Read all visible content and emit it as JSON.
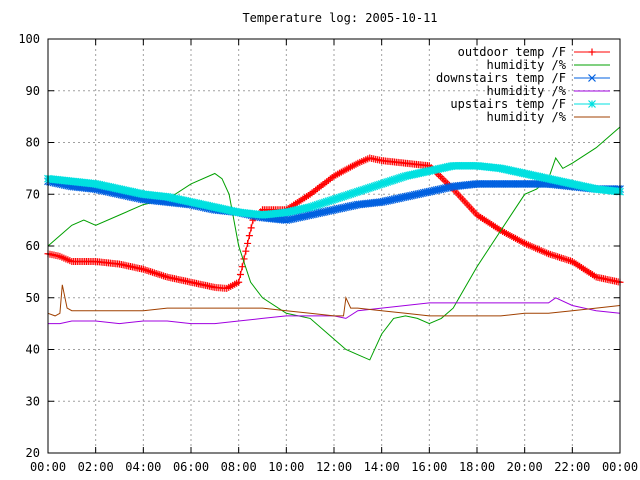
{
  "chart_data": {
    "type": "line",
    "title": "Temperature log: 2005-10-11",
    "xlabel": "",
    "ylabel": "",
    "xlim": [
      0,
      24
    ],
    "ylim": [
      20,
      100
    ],
    "x_ticks": [
      0,
      2,
      4,
      6,
      8,
      10,
      12,
      14,
      16,
      18,
      20,
      22,
      24
    ],
    "x_tick_labels": [
      "00:00",
      "02:00",
      "04:00",
      "06:00",
      "08:00",
      "10:00",
      "12:00",
      "14:00",
      "16:00",
      "18:00",
      "20:00",
      "22:00",
      "00:00"
    ],
    "y_ticks": [
      20,
      30,
      40,
      50,
      60,
      70,
      80,
      90,
      100
    ],
    "y_tick_labels": [
      "20",
      "30",
      "40",
      "50",
      "60",
      "70",
      "80",
      "90",
      "100"
    ],
    "grid": true,
    "legend": "top-right",
    "series": [
      {
        "name": "outdoor temp /F",
        "color": "#ff0000",
        "marker": "plus",
        "x": [
          0,
          0.5,
          1,
          2,
          3,
          4,
          5,
          6,
          7,
          7.5,
          8,
          8.3,
          8.6,
          9,
          10,
          11,
          12,
          13,
          13.5,
          14,
          15,
          16,
          17,
          18,
          19,
          20,
          21,
          22,
          23,
          24
        ],
        "y": [
          58.5,
          58,
          57,
          57,
          56.5,
          55.5,
          54,
          53,
          52,
          51.8,
          53,
          59,
          65,
          67,
          67,
          70,
          73.5,
          76,
          77,
          76.5,
          76,
          75.5,
          71,
          66,
          63,
          60.5,
          58.5,
          57,
          54,
          53
        ]
      },
      {
        "name": "humidity /%",
        "color": "#00a000",
        "marker": "none",
        "x": [
          0,
          0.5,
          1,
          1.5,
          2,
          3,
          4,
          5,
          6,
          7,
          7.3,
          7.6,
          8,
          8.5,
          9,
          10,
          11,
          12,
          12.5,
          13,
          13.5,
          14,
          14.5,
          15,
          15.5,
          16,
          16.5,
          17,
          17.5,
          18,
          19,
          20,
          20.5,
          21,
          21.3,
          21.6,
          22,
          23,
          24
        ],
        "y": [
          60,
          62,
          64,
          65,
          64,
          66,
          68,
          69,
          72,
          74,
          73,
          70,
          60,
          53,
          50,
          47,
          46,
          42,
          40,
          39,
          38,
          43,
          46,
          46.5,
          46,
          45,
          46,
          48,
          52,
          56,
          63,
          70,
          71,
          73,
          77,
          75,
          76,
          79,
          83
        ]
      },
      {
        "name": "downstairs temp /F",
        "color": "#0060e0",
        "marker": "x",
        "x": [
          0,
          1,
          2,
          3,
          4,
          5,
          6,
          7,
          8,
          9,
          10,
          11,
          12,
          13,
          14,
          15,
          16,
          17,
          18,
          19,
          20,
          21,
          22,
          23,
          24
        ],
        "y": [
          72.5,
          71.5,
          71,
          70,
          69,
          68.5,
          68,
          67,
          66.5,
          65.5,
          65,
          66,
          67,
          68,
          68.5,
          69.5,
          70.5,
          71.5,
          72,
          72,
          72,
          72,
          71.5,
          71,
          71
        ]
      },
      {
        "name": "humidity /%",
        "color": "#a000e0",
        "marker": "none",
        "x": [
          0,
          0.5,
          1,
          2,
          3,
          4,
          5,
          6,
          7,
          8,
          9,
          10,
          11,
          12,
          12.5,
          13,
          14,
          15,
          16,
          17,
          18,
          19,
          20,
          21,
          21.3,
          22,
          23,
          24
        ],
        "y": [
          45,
          45,
          45.5,
          45.5,
          45,
          45.5,
          45.5,
          45,
          45,
          45.5,
          46,
          46.5,
          46.5,
          46.5,
          46,
          47.5,
          48,
          48.5,
          49,
          49,
          49,
          49,
          49,
          49,
          50,
          48.5,
          47.5,
          47
        ]
      },
      {
        "name": "upstairs temp /F",
        "color": "#00e0e0",
        "marker": "star",
        "x": [
          0,
          1,
          2,
          3,
          4,
          5,
          6,
          7,
          8,
          9,
          10,
          11,
          12,
          13,
          14,
          15,
          16,
          17,
          18,
          19,
          20,
          21,
          22,
          23,
          24
        ],
        "y": [
          73,
          72.5,
          72,
          71,
          70,
          69.5,
          68.5,
          67.5,
          66.5,
          66,
          66.5,
          67.5,
          69,
          70.5,
          72,
          73.5,
          74.5,
          75.5,
          75.5,
          75,
          74,
          73,
          72,
          71,
          70.5
        ]
      },
      {
        "name": "humidity /%",
        "color": "#a04000",
        "marker": "none",
        "x": [
          0,
          0.3,
          0.5,
          0.6,
          0.8,
          1,
          2,
          3,
          4,
          5,
          6,
          7,
          8,
          9,
          10,
          11,
          12,
          12.4,
          12.5,
          12.7,
          13,
          14,
          15,
          16,
          17,
          18,
          19,
          20,
          21,
          22,
          23,
          24
        ],
        "y": [
          47,
          46.5,
          47,
          52.5,
          48,
          47.5,
          47.5,
          47.5,
          47.5,
          48,
          48,
          48,
          48,
          48,
          47.5,
          47,
          46.5,
          46.5,
          50,
          48,
          48,
          47.5,
          47,
          46.5,
          46.5,
          46.5,
          46.5,
          47,
          47,
          47.5,
          48,
          48.5
        ]
      }
    ]
  }
}
